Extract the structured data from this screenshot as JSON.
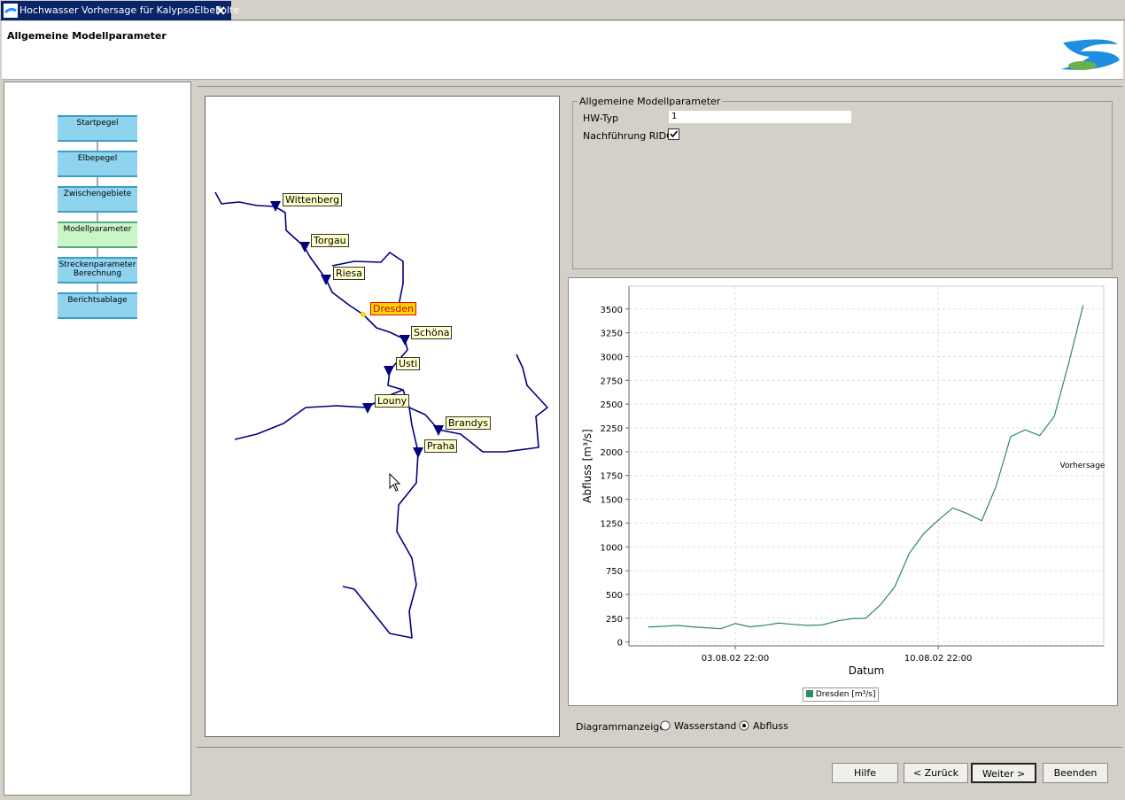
{
  "tab": {
    "title": "Hochwasser Vorhersage für KalypsoElbePolte"
  },
  "header": {
    "title": "Allgemeine Modellparameter"
  },
  "workflow": [
    "Startpegel",
    "Elbepegel",
    "Zwischengebiete",
    "Modellparameter",
    "Streckenparameter Berechnung",
    "Berichtsablage"
  ],
  "map": {
    "gauges": [
      "Wittenberg",
      "Torgau",
      "Riesa",
      "Dresden",
      "Schöna",
      "Usti",
      "Louny",
      "Brandys",
      "Praha"
    ]
  },
  "parameters": {
    "title": "Allgemeine Modellparameter",
    "hw_typ_label": "HW-Typ",
    "hw_typ_value": "1",
    "rido_label": "Nachführung RIDO"
  },
  "chart_data": {
    "type": "line",
    "x": [
      "31.07.02 22:00",
      "01.08.02 10:00",
      "01.08.02 22:00",
      "02.08.02 10:00",
      "02.08.02 22:00",
      "03.08.02 10:00",
      "03.08.02 22:00",
      "04.08.02 10:00",
      "04.08.02 22:00",
      "05.08.02 10:00",
      "05.08.02 22:00",
      "06.08.02 10:00",
      "06.08.02 22:00",
      "07.08.02 10:00",
      "07.08.02 22:00",
      "08.08.02 10:00",
      "08.08.02 22:00",
      "09.08.02 10:00",
      "09.08.02 22:00",
      "10.08.02 10:00",
      "10.08.02 22:00",
      "11.08.02 10:00",
      "11.08.02 22:00",
      "12.08.02 10:00",
      "12.08.02 22:00",
      "13.08.02 10:00",
      "13.08.02 22:00",
      "14.08.02 10:00",
      "14.08.02 22:00",
      "15.08.02 10:00",
      "15.08.02 22:00"
    ],
    "series": [
      {
        "name": "Dresden [m³/s]",
        "color": "#2e8b57",
        "values": [
          158,
          165,
          175,
          160,
          150,
          140,
          195,
          160,
          175,
          200,
          185,
          175,
          180,
          220,
          245,
          250,
          390,
          580,
          930,
          1140,
          1280,
          1410,
          1350,
          1275,
          1640,
          2160,
          2230,
          2170,
          2370,
          2930,
          3540
        ]
      }
    ],
    "xlabel": "Datum",
    "ylabel": "Abfluss [m³/s]",
    "xlim": [
      "31.07.02 06:00",
      "16.08.02 15:00"
    ],
    "xticks": [
      "03.08.02 22:00",
      "10.08.02 22:00"
    ],
    "ylim": [
      -40,
      3740
    ],
    "yticks": [
      0,
      250,
      500,
      750,
      1000,
      1250,
      1500,
      1750,
      2000,
      2250,
      2500,
      2750,
      3000,
      3250,
      3500
    ],
    "grid": true,
    "annotation": "Vorhersage"
  },
  "display": {
    "label": "Diagrammanzeige:",
    "options": [
      "Wasserstand",
      "Abfluss"
    ]
  },
  "buttons": [
    "Hilfe",
    "< Zurück",
    "Weiter >",
    "Beenden"
  ]
}
